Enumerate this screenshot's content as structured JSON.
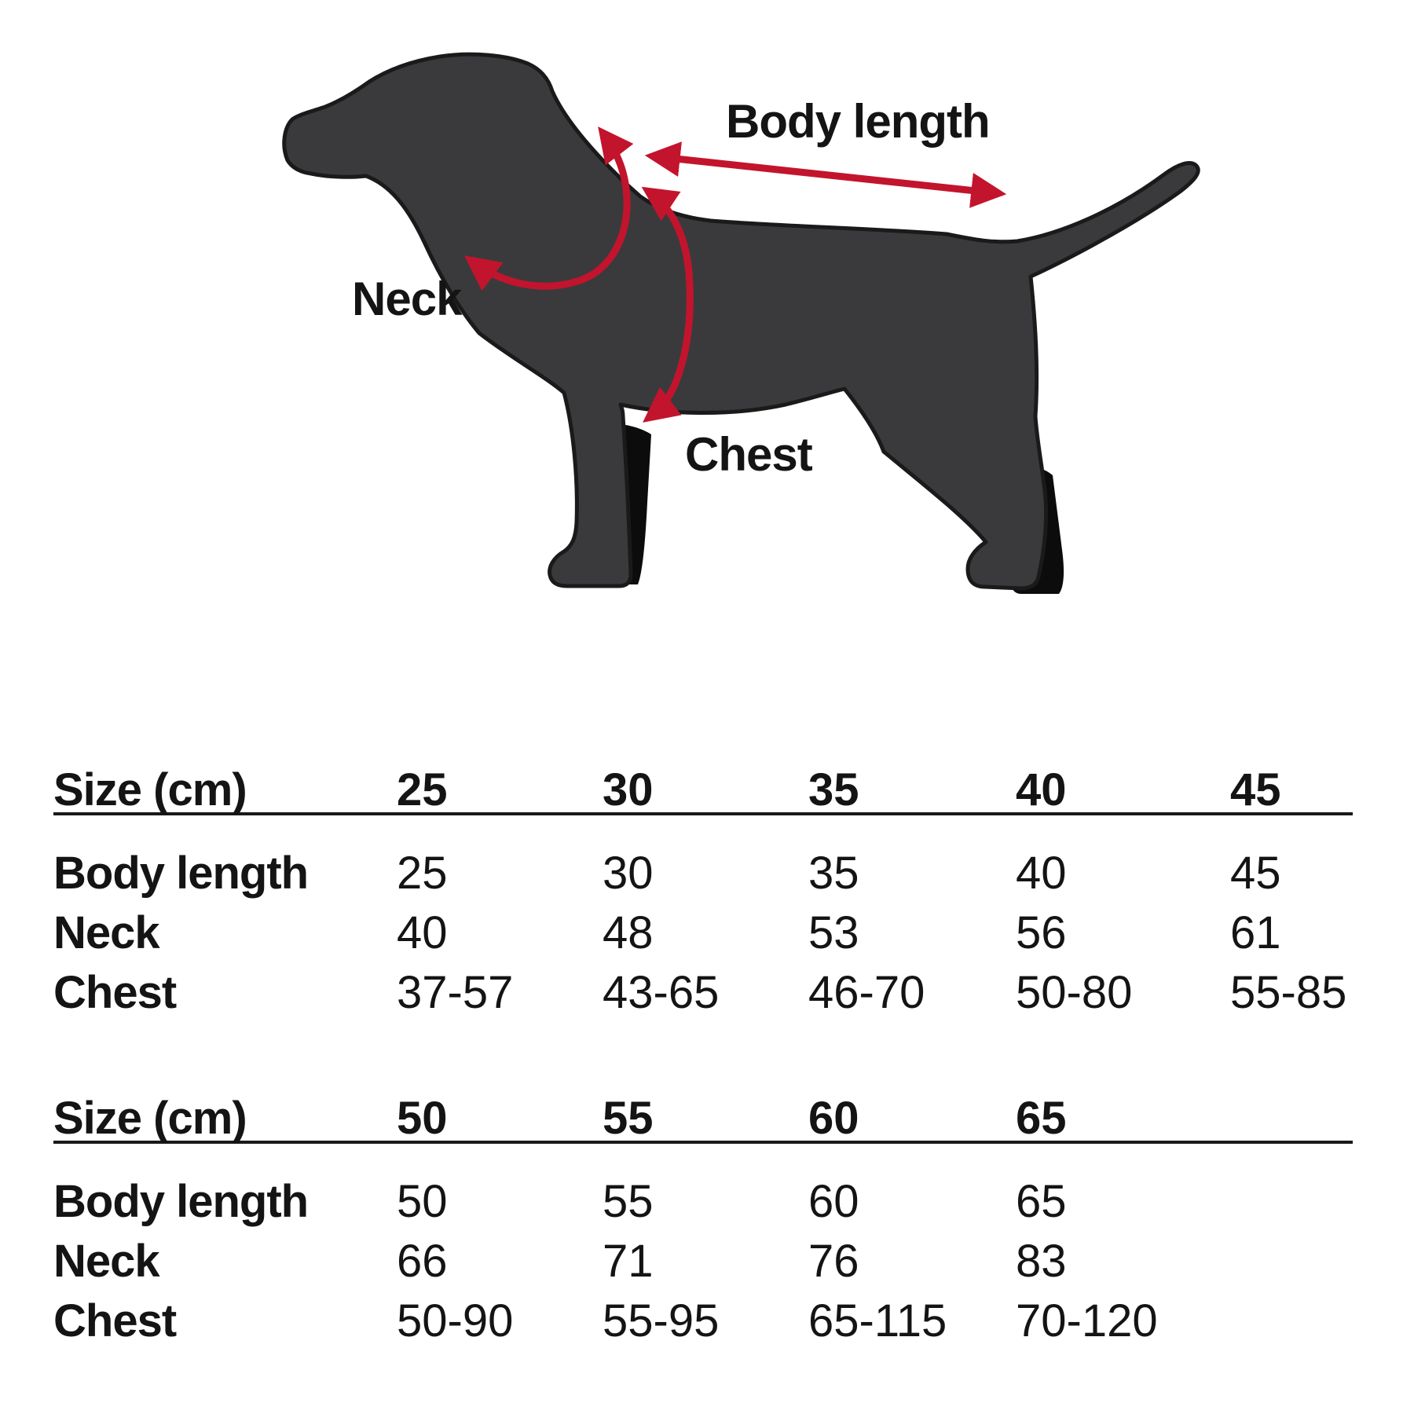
{
  "diagram": {
    "labels": {
      "body_length": "Body length",
      "neck": "Neck",
      "chest": "Chest"
    }
  },
  "colors": {
    "arrow_red": "#c3142d",
    "dog_body": "#3a3a3c",
    "dog_outline": "#1a1a1a",
    "text": "#141414",
    "background": "#ffffff"
  },
  "tables": [
    {
      "header_label": "Size (cm)",
      "sizes": [
        "25",
        "30",
        "35",
        "40",
        "45"
      ],
      "rows": [
        {
          "label": "Body length",
          "values": [
            "25",
            "30",
            "35",
            "40",
            "45"
          ]
        },
        {
          "label": "Neck",
          "values": [
            "40",
            "48",
            "53",
            "56",
            "61"
          ]
        },
        {
          "label": "Chest",
          "values": [
            "37-57",
            "43-65",
            "46-70",
            "50-80",
            "55-85"
          ]
        }
      ]
    },
    {
      "header_label": "Size (cm)",
      "sizes": [
        "50",
        "55",
        "60",
        "65"
      ],
      "rows": [
        {
          "label": "Body length",
          "values": [
            "50",
            "55",
            "60",
            "65"
          ]
        },
        {
          "label": "Neck",
          "values": [
            "66",
            "71",
            "76",
            "83"
          ]
        },
        {
          "label": "Chest",
          "values": [
            "50-90",
            "55-95",
            "65-115",
            "70-120"
          ]
        }
      ]
    }
  ]
}
